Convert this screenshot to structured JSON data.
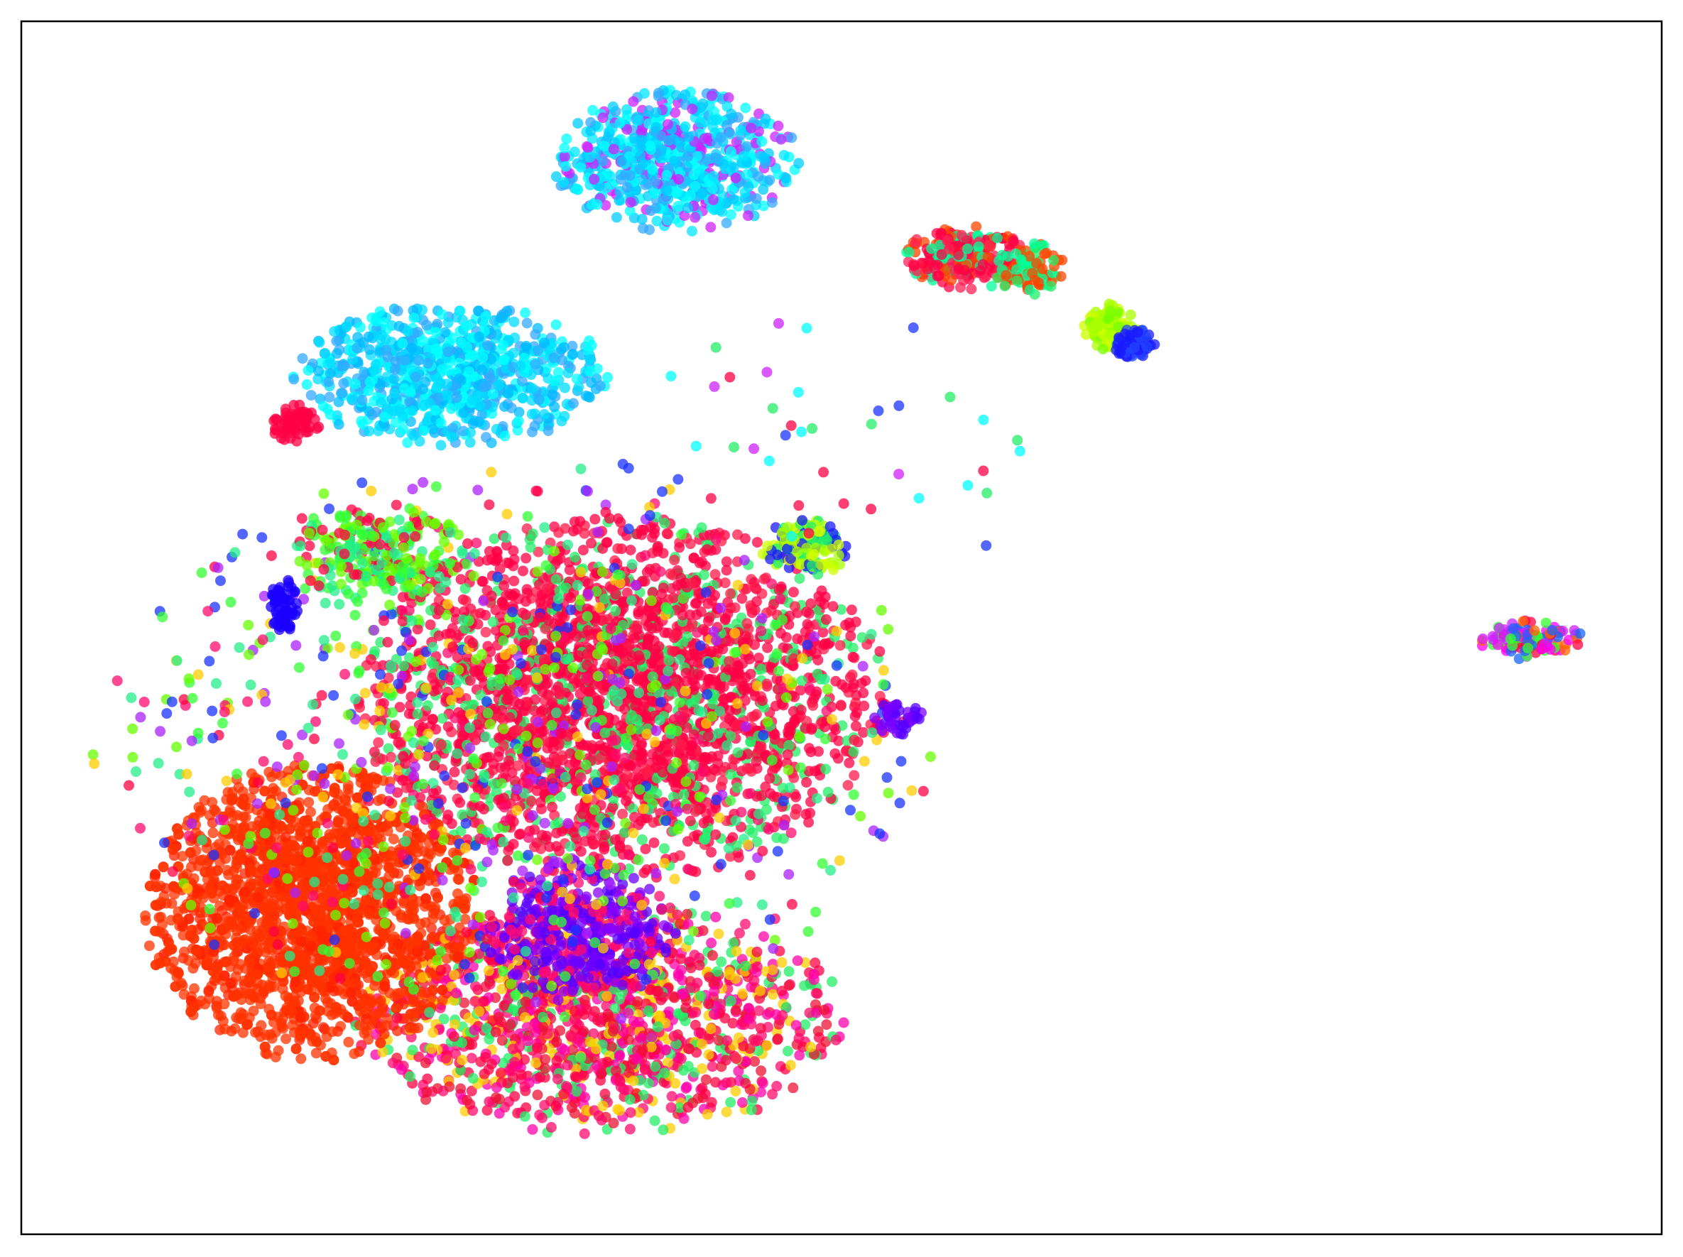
{
  "chart_data": {
    "type": "scatter",
    "title": "",
    "xlabel": "",
    "ylabel": "",
    "xlim": [
      0,
      100
    ],
    "ylim": [
      0,
      100
    ],
    "ticks": false,
    "grid": false,
    "legend": "none",
    "frame_color": "#000000",
    "point_opacity": 0.75,
    "clusters": [
      {
        "center": [
          36.6,
          44.2
        ],
        "spread": [
          15,
          14
        ],
        "count": 2600,
        "colors": [
          "#ff0044",
          "#ff0044",
          "#ff0044",
          "#ff1a4a",
          "#22ee66"
        ]
      },
      {
        "center": [
          35.3,
          17.7
        ],
        "spread": [
          14,
          9
        ],
        "count": 1400,
        "colors": [
          "#ff0a6e",
          "#ff0044",
          "#ff00aa",
          "#ee1133",
          "#22ee66",
          "#ffcc00"
        ]
      },
      {
        "center": [
          17.7,
          26.5
        ],
        "spread": [
          9.5,
          11.5
        ],
        "count": 2200,
        "colors": [
          "#ff3300",
          "#ff3300",
          "#ff3300",
          "#ff3300",
          "#ff3300",
          "#ff2200"
        ]
      },
      {
        "center": [
          34.0,
          25.0
        ],
        "spread": [
          5.5,
          5.5
        ],
        "count": 450,
        "colors": [
          "#6a00ff",
          "#5500ff",
          "#8800ff",
          "#ff0a6e"
        ]
      },
      {
        "center": [
          30.0,
          40.0
        ],
        "spread": [
          24,
          22
        ],
        "count": 900,
        "colors": [
          "#33ff33",
          "#22ee88",
          "#66ff00",
          "#ff0044",
          "#1a33ff",
          "#aa22ff",
          "#ffcc00",
          "#ff0a6e"
        ]
      },
      {
        "center": [
          22.0,
          56.0
        ],
        "spread": [
          5,
          4
        ],
        "count": 260,
        "colors": [
          "#33ff33",
          "#66ff00",
          "#22ee88",
          "#ff0044"
        ]
      },
      {
        "center": [
          39.9,
          88.5
        ],
        "spread": [
          7,
          5.5
        ],
        "count": 700,
        "colors": [
          "#00ffff",
          "#00ccff",
          "#00e5ff",
          "#33aaff",
          "#cc22ff"
        ]
      },
      {
        "center": [
          26.2,
          70.8
        ],
        "spread": [
          9,
          5.5
        ],
        "count": 800,
        "colors": [
          "#00ddff",
          "#00ffff",
          "#00bbff",
          "#33aaff"
        ]
      },
      {
        "center": [
          16.7,
          66.8
        ],
        "spread": [
          1.5,
          1.5
        ],
        "count": 60,
        "colors": [
          "#ff0044"
        ]
      },
      {
        "center": [
          16.0,
          51.8
        ],
        "spread": [
          0.8,
          2.2
        ],
        "count": 60,
        "colors": [
          "#1a00ff"
        ]
      },
      {
        "center": [
          57.6,
          80.5
        ],
        "spread": [
          3.5,
          2.5
        ],
        "count": 260,
        "colors": [
          "#ff0044",
          "#ff0044",
          "#ff2255",
          "#00ff99",
          "#ff4400"
        ]
      },
      {
        "center": [
          61.5,
          79.6
        ],
        "spread": [
          2,
          2
        ],
        "count": 90,
        "colors": [
          "#00ff99",
          "#22ee66",
          "#ff4400"
        ]
      },
      {
        "center": [
          66.4,
          74.8
        ],
        "spread": [
          1.6,
          1.8
        ],
        "count": 110,
        "colors": [
          "#aaff00",
          "#ccff00",
          "#77ff00"
        ]
      },
      {
        "center": [
          67.8,
          73.4
        ],
        "spread": [
          1.2,
          1.2
        ],
        "count": 70,
        "colors": [
          "#1a1aff",
          "#2244ff"
        ]
      },
      {
        "center": [
          47.8,
          56.6
        ],
        "spread": [
          2.5,
          2.2
        ],
        "count": 140,
        "colors": [
          "#1a1aff",
          "#ccff00",
          "#aaff00",
          "#22ee66"
        ]
      },
      {
        "center": [
          53.5,
          42.5
        ],
        "spread": [
          1.5,
          1.5
        ],
        "count": 40,
        "colors": [
          "#7a00ff",
          "#5500ff"
        ]
      },
      {
        "center": [
          92.0,
          49.0
        ],
        "spread": [
          3,
          1.5
        ],
        "count": 120,
        "colors": [
          "#33ff33",
          "#ff0044",
          "#ff00ff",
          "#ff6600",
          "#1a66ff",
          "#cc22ff"
        ]
      },
      {
        "center": [
          50.0,
          65.0
        ],
        "spread": [
          14,
          10
        ],
        "count": 40,
        "colors": [
          "#ff0044",
          "#22ee66",
          "#cc22ff",
          "#00ffff",
          "#1a33ff"
        ]
      }
    ]
  }
}
